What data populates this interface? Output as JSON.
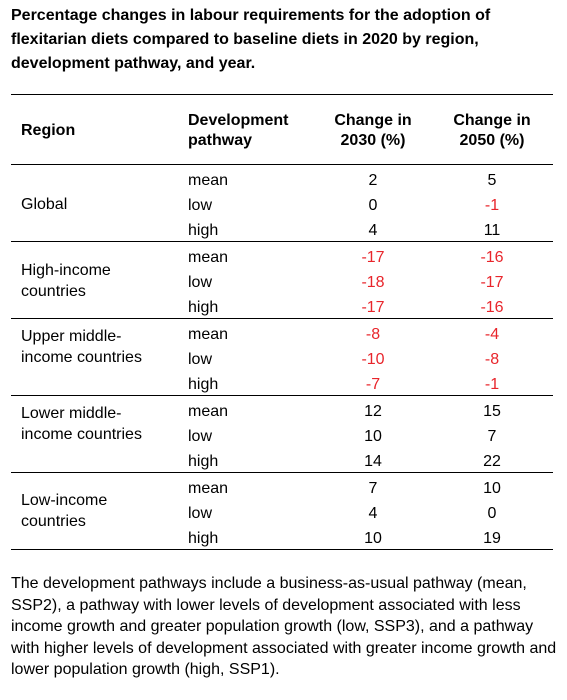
{
  "title": "Percentage changes in labour requirements for the adoption of flexitarian diets compared to baseline diets in 2020 by region, development pathway, and year.",
  "headers": {
    "region": "Region",
    "pathway": "Development pathway",
    "change2030": "Change in 2030 (%)",
    "change2050": "Change in 2050 (%)"
  },
  "groups": [
    {
      "region": "Global",
      "rows": [
        {
          "pathway": "mean",
          "v2030": "2",
          "v2050": "5"
        },
        {
          "pathway": "low",
          "v2030": "0",
          "v2050": "-1"
        },
        {
          "pathway": "high",
          "v2030": "4",
          "v2050": "11"
        }
      ]
    },
    {
      "region": "High-income countries",
      "rows": [
        {
          "pathway": "mean",
          "v2030": "-17",
          "v2050": "-16"
        },
        {
          "pathway": "low",
          "v2030": "-18",
          "v2050": "-17"
        },
        {
          "pathway": "high",
          "v2030": "-17",
          "v2050": "-16"
        }
      ]
    },
    {
      "region": "Upper middle-income countries",
      "rows": [
        {
          "pathway": "mean",
          "v2030": "-8",
          "v2050": "-4"
        },
        {
          "pathway": "low",
          "v2030": "-10",
          "v2050": "-8"
        },
        {
          "pathway": "high",
          "v2030": "-7",
          "v2050": "-1"
        }
      ]
    },
    {
      "region": "Lower middle-income countries",
      "rows": [
        {
          "pathway": "mean",
          "v2030": "12",
          "v2050": "15"
        },
        {
          "pathway": "low",
          "v2030": "10",
          "v2050": "7"
        },
        {
          "pathway": "high",
          "v2030": "14",
          "v2050": "22"
        }
      ]
    },
    {
      "region": "Low-income countries",
      "rows": [
        {
          "pathway": "mean",
          "v2030": "7",
          "v2050": "10"
        },
        {
          "pathway": "low",
          "v2030": "4",
          "v2050": "0"
        },
        {
          "pathway": "high",
          "v2030": "10",
          "v2050": "19"
        }
      ]
    }
  ],
  "note": "The development pathways include a business-as-usual pathway (mean, SSP2), a pathway with lower levels of development associated with less income growth and greater population growth (low, SSP3), and a pathway with higher levels of development associated with greater income growth and lower population growth (high, SSP1).",
  "colors": {
    "negative": "#e8252b",
    "text": "#000000"
  }
}
